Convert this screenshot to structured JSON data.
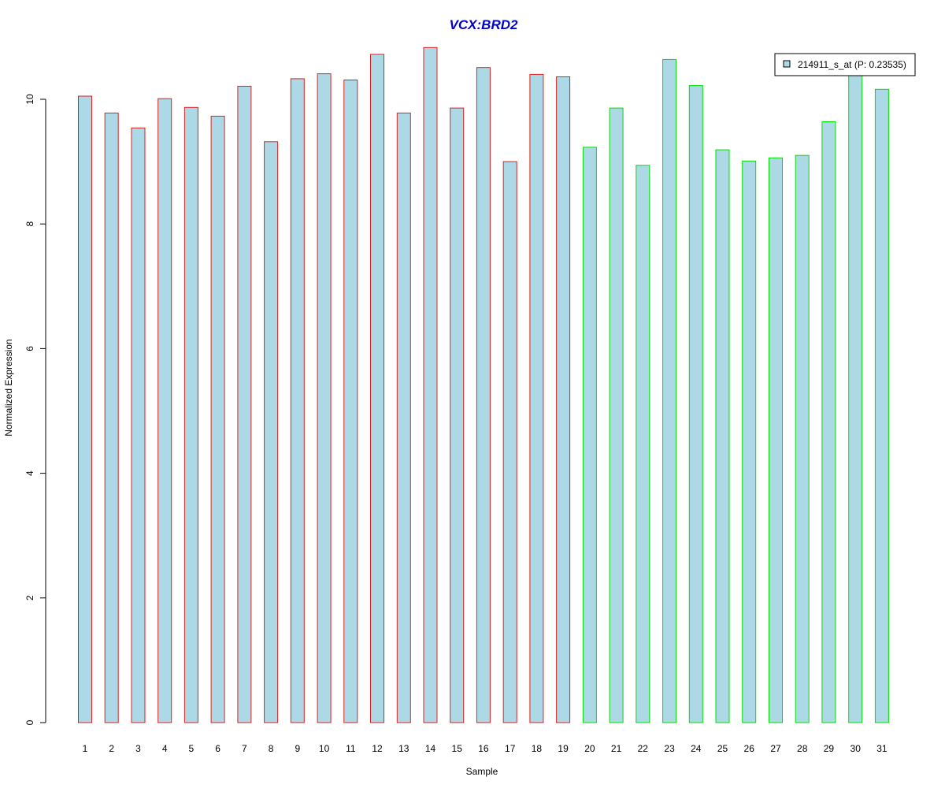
{
  "chart_data": {
    "type": "bar",
    "title": "VCX:BRD2",
    "xlabel": "Sample",
    "ylabel": "Normalized Expression",
    "ylim": [
      0,
      10.8
    ],
    "y_ticks": [
      0,
      2,
      4,
      6,
      8,
      10
    ],
    "grid": false,
    "legend_position": "top-right",
    "categories": [
      "1",
      "2",
      "3",
      "4",
      "5",
      "6",
      "7",
      "8",
      "9",
      "10",
      "11",
      "12",
      "13",
      "14",
      "15",
      "16",
      "17",
      "18",
      "19",
      "20",
      "21",
      "22",
      "23",
      "24",
      "25",
      "26",
      "27",
      "28",
      "29",
      "30",
      "31"
    ],
    "series": [
      {
        "name": "214911_s_at (P: 0.23535)",
        "values": [
          10.05,
          9.78,
          9.54,
          10.01,
          9.87,
          9.73,
          10.21,
          9.32,
          10.33,
          10.41,
          10.31,
          10.72,
          9.78,
          10.83,
          9.86,
          10.51,
          9.0,
          10.4,
          10.36,
          9.23,
          9.86,
          8.94,
          10.64,
          10.22,
          9.19,
          9.01,
          9.06,
          9.1,
          9.64,
          10.42,
          10.16
        ]
      }
    ],
    "group_sizes": [
      19,
      12
    ]
  },
  "colors": {
    "title": "#0000CC",
    "bar_fill": "#ADD8E6",
    "group1_border": "#E02020",
    "group2_border": "#00E000",
    "axis": "#000000"
  }
}
